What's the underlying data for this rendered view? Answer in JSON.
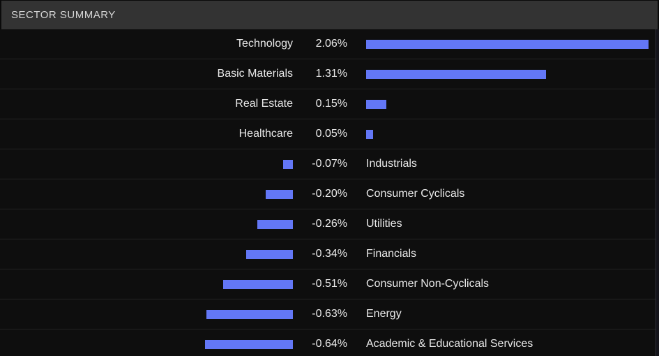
{
  "header": {
    "title": "SECTOR SUMMARY"
  },
  "colors": {
    "bar": "#6377f6",
    "header_bg": "#333333",
    "row_bg": "#0e0e0e",
    "separator": "#242424",
    "text": "#e9e9e9",
    "header_text": "#d6d6d6"
  },
  "chart_data": {
    "type": "bar",
    "orientation": "horizontal",
    "title": "SECTOR SUMMARY",
    "unit": "%",
    "categories": [
      "Technology",
      "Basic Materials",
      "Real Estate",
      "Healthcare",
      "Industrials",
      "Consumer Cyclicals",
      "Utilities",
      "Financials",
      "Consumer Non-Cyclicals",
      "Energy",
      "Academic & Educational Services"
    ],
    "values": [
      2.06,
      1.31,
      0.15,
      0.05,
      -0.07,
      -0.2,
      -0.26,
      -0.34,
      -0.51,
      -0.63,
      -0.64
    ],
    "value_labels": [
      "2.06%",
      "1.31%",
      "0.15%",
      "0.05%",
      "-0.07%",
      "-0.20%",
      "-0.26%",
      "-0.34%",
      "-0.51%",
      "-0.63%",
      "-0.64%"
    ],
    "xlim": [
      -0.64,
      2.06
    ],
    "bar_color": "#6377f6",
    "layout": "diverging; positive bars extend right of center gutter with label and value on the left; negative bars extend left with value and label on the right; grid off; no axis ticks"
  }
}
